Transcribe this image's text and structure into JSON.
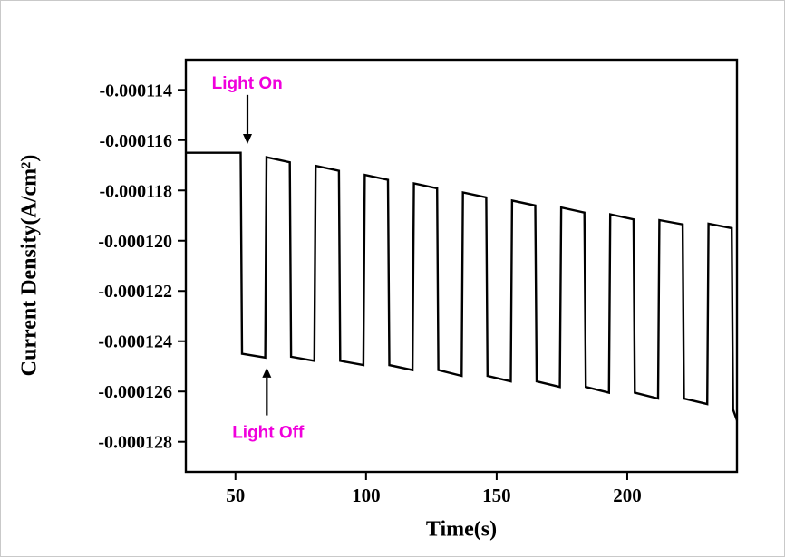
{
  "figure": {
    "background": "#ffffff",
    "frame_color": "#000000",
    "curve_color": "#000000",
    "annotation_color": "#f000dc"
  },
  "chart_data": {
    "type": "line",
    "title": "",
    "xlabel": "Time(s)",
    "ylabel": "Current Density(A/cm²)",
    "xlim": [
      31,
      242
    ],
    "ylim": [
      -0.0001292,
      -0.0001128
    ],
    "grid": false,
    "legend": "none",
    "x_ticks": [
      {
        "value": 50,
        "label": "50"
      },
      {
        "value": 100,
        "label": "100"
      },
      {
        "value": 150,
        "label": "150"
      },
      {
        "value": 200,
        "label": "200"
      }
    ],
    "y_ticks": [
      {
        "value": -0.000114,
        "label": "-0.000114"
      },
      {
        "value": -0.000116,
        "label": "-0.000116"
      },
      {
        "value": -0.000118,
        "label": "-0.000118"
      },
      {
        "value": -0.00012,
        "label": "-0.000120"
      },
      {
        "value": -0.000122,
        "label": "-0.000122"
      },
      {
        "value": -0.000124,
        "label": "-0.000124"
      },
      {
        "value": -0.000126,
        "label": "-0.000126"
      },
      {
        "value": -0.000128,
        "label": "-0.000128"
      }
    ],
    "baseline": {
      "t_start": 31,
      "level": -0.0001165
    },
    "edge_seconds": 0.5,
    "cycles": [
      {
        "on": 52.0,
        "off": 61.4,
        "bottom_start": -0.0001245,
        "bottom_end": -0.00012465,
        "top_start": -0.00011668,
        "top_end": -0.00011688
      },
      {
        "on": 70.8,
        "off": 80.2,
        "bottom_start": -0.00012462,
        "bottom_end": -0.00012478,
        "top_start": -0.00011702,
        "top_end": -0.00011722
      },
      {
        "on": 89.6,
        "off": 99.0,
        "bottom_start": -0.00012478,
        "bottom_end": -0.00012495,
        "top_start": -0.00011738,
        "top_end": -0.00011758
      },
      {
        "on": 108.4,
        "off": 117.8,
        "bottom_start": -0.00012495,
        "bottom_end": -0.00012515,
        "top_start": -0.00011772,
        "top_end": -0.00011792
      },
      {
        "on": 127.2,
        "off": 136.6,
        "bottom_start": -0.00012515,
        "bottom_end": -0.00012538,
        "top_start": -0.00011808,
        "top_end": -0.00011828
      },
      {
        "on": 146.0,
        "off": 155.4,
        "bottom_start": -0.00012538,
        "bottom_end": -0.0001256,
        "top_start": -0.0001184,
        "top_end": -0.0001186
      },
      {
        "on": 164.8,
        "off": 174.2,
        "bottom_start": -0.0001256,
        "bottom_end": -0.00012582,
        "top_start": -0.00011868,
        "top_end": -0.00011888
      },
      {
        "on": 183.6,
        "off": 193.0,
        "bottom_start": -0.00012582,
        "bottom_end": -0.00012605,
        "top_start": -0.00011895,
        "top_end": -0.00011915
      },
      {
        "on": 202.4,
        "off": 211.8,
        "bottom_start": -0.00012605,
        "bottom_end": -0.00012628,
        "top_start": -0.00011918,
        "top_end": -0.00011935
      },
      {
        "on": 221.2,
        "off": 230.6,
        "bottom_start": -0.00012628,
        "bottom_end": -0.0001265,
        "top_start": -0.00011932,
        "top_end": -0.0001195
      },
      {
        "on": 240.0,
        "off": null,
        "bottom_start": -0.00012672,
        "bottom_end": -0.00012715,
        "top_start": null,
        "top_end": null
      }
    ],
    "annotations": [
      {
        "id": "light-on",
        "text": "Light On",
        "color": "#f000dc",
        "text_t": 54.5,
        "text_v": -0.0001137,
        "arrow_t": 54.6,
        "arrow_from_v": -0.0001142,
        "arrow_to_v": -0.00011615,
        "direction": "down"
      },
      {
        "id": "light-off",
        "text": "Light Off",
        "color": "#f000dc",
        "text_t": 62.5,
        "text_v": -0.0001276,
        "arrow_t": 62.0,
        "arrow_from_v": -0.00012695,
        "arrow_to_v": -0.00012505,
        "direction": "up"
      }
    ]
  }
}
